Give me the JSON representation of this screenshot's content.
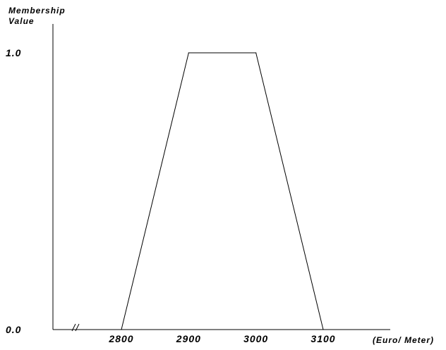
{
  "chart_data": {
    "type": "line",
    "title": "",
    "ylabel_lines": [
      "Membership",
      "Value"
    ],
    "xlabel": "(Euro/ Meter)",
    "x_axis_break": true,
    "xlim": [
      2700,
      3200
    ],
    "ylim": [
      0,
      1
    ],
    "x_ticks": [
      {
        "value": 2800,
        "label": "2800"
      },
      {
        "value": 2900,
        "label": "2900"
      },
      {
        "value": 3000,
        "label": "3000"
      },
      {
        "value": 3100,
        "label": "3100"
      }
    ],
    "y_ticks": [
      {
        "value": 0,
        "label": "0.0"
      },
      {
        "value": 1,
        "label": "1.0"
      }
    ],
    "series": [
      {
        "x": [
          2800,
          2900,
          3000,
          3100
        ],
        "y": [
          0,
          1,
          1,
          0
        ]
      }
    ],
    "grid": false,
    "legend": "none",
    "colors": {
      "line": "#000000",
      "axis": "#000000",
      "text": "#000000"
    }
  }
}
